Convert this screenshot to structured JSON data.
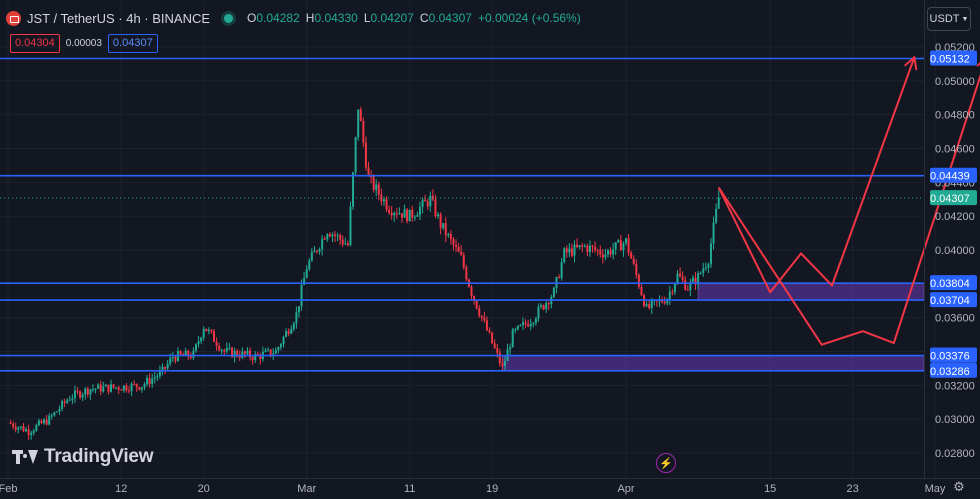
{
  "header": {
    "symbol": "JST / TetherUS · 4h · BINANCE",
    "ohlc": [
      {
        "k": "O",
        "v": "0.04282"
      },
      {
        "k": "H",
        "v": "0.04330"
      },
      {
        "k": "L",
        "v": "0.04207"
      },
      {
        "k": "C",
        "v": "0.04307"
      }
    ],
    "change": "+0.00024 (+0.56%)"
  },
  "quote": {
    "bid": "0.04304",
    "spread": "0.00003",
    "ask": "0.04307"
  },
  "currency_button": "USDT",
  "branding": "TradingView",
  "colors": {
    "background": "#131722",
    "up": "#22ab94",
    "down": "#f23645",
    "level_line": "#2962ff",
    "zone": "#673ab7",
    "arrow": "#f23645"
  },
  "chart_data": {
    "type": "candlestick",
    "symbol": "JST/USDT",
    "timeframe": "4h",
    "x_ticks": [
      "Feb",
      "12",
      "20",
      "Mar",
      "11",
      "19",
      "Apr",
      "15",
      "23",
      "May"
    ],
    "y_ticks": [
      "0.05200",
      "0.05000",
      "0.04800",
      "0.04600",
      "0.04400",
      "0.04200",
      "0.04000",
      "0.03800",
      "0.03600",
      "0.03400",
      "0.03200",
      "0.03000",
      "0.02800"
    ],
    "ylim": [
      0.027,
      0.0528
    ],
    "grid": true,
    "current_price": "0.04307",
    "horizontal_levels": [
      "0.05132",
      "0.04439",
      "0.03804",
      "0.03704",
      "0.03376",
      "0.03286"
    ],
    "zones": [
      {
        "from": "0.03704",
        "to": "0.03804",
        "start": "Apr 8"
      },
      {
        "from": "0.03286",
        "to": "0.03376",
        "start": "Mar 20"
      }
    ],
    "projection_paths": [
      {
        "points": [
          [
            "Apr 10",
            0.0437
          ],
          [
            "Apr 15",
            0.0375
          ],
          [
            "Apr 18",
            0.0398
          ],
          [
            "Apr 21",
            0.0379
          ],
          [
            "Apr 29",
            0.0514
          ]
        ]
      },
      {
        "points": [
          [
            "Apr 10",
            0.0437
          ],
          [
            "Apr 20",
            0.0344
          ],
          [
            "Apr 24",
            0.0352
          ],
          [
            "Apr 27",
            0.0345
          ],
          [
            "May 6",
            0.0514
          ]
        ]
      }
    ],
    "price_path": [
      [
        "Feb 1",
        0.0298
      ],
      [
        "Feb 3",
        0.0293
      ],
      [
        "Feb 5",
        0.03
      ],
      [
        "Feb 7",
        0.0313
      ],
      [
        "Feb 9",
        0.0318
      ],
      [
        "Feb 12",
        0.0319
      ],
      [
        "Feb 14",
        0.032
      ],
      [
        "Feb 16",
        0.0328
      ],
      [
        "Feb 17",
        0.0337
      ],
      [
        "Feb 19",
        0.0338
      ],
      [
        "Feb 20",
        0.0355
      ],
      [
        "Feb 22",
        0.034
      ],
      [
        "Feb 25",
        0.0337
      ],
      [
        "Feb 27",
        0.034
      ],
      [
        "Feb 29",
        0.0362
      ],
      [
        "Mar 1",
        0.039
      ],
      [
        "Mar 3",
        0.0412
      ],
      [
        "Mar 5",
        0.0403
      ],
      [
        "Mar 6",
        0.0485
      ],
      [
        "Mar 7",
        0.0442
      ],
      [
        "Mar 9",
        0.0425
      ],
      [
        "Mar 11",
        0.042
      ],
      [
        "Mar 13",
        0.043
      ],
      [
        "Mar 14",
        0.0415
      ],
      [
        "Mar 16",
        0.0395
      ],
      [
        "Mar 17",
        0.0375
      ],
      [
        "Mar 19",
        0.0345
      ],
      [
        "Mar 20",
        0.033
      ],
      [
        "Mar 21",
        0.035
      ],
      [
        "Mar 23",
        0.036
      ],
      [
        "Mar 25",
        0.0375
      ],
      [
        "Mar 26",
        0.0398
      ],
      [
        "Mar 28",
        0.0402
      ],
      [
        "Mar 30",
        0.0398
      ],
      [
        "Apr 1",
        0.0405
      ],
      [
        "Apr 2",
        0.0385
      ],
      [
        "Apr 3",
        0.0365
      ],
      [
        "Apr 5",
        0.0372
      ],
      [
        "Apr 6",
        0.0385
      ],
      [
        "Apr 7",
        0.0378
      ],
      [
        "Apr 8",
        0.0384
      ],
      [
        "Apr 9",
        0.0395
      ],
      [
        "Apr 10",
        0.0431
      ]
    ]
  }
}
